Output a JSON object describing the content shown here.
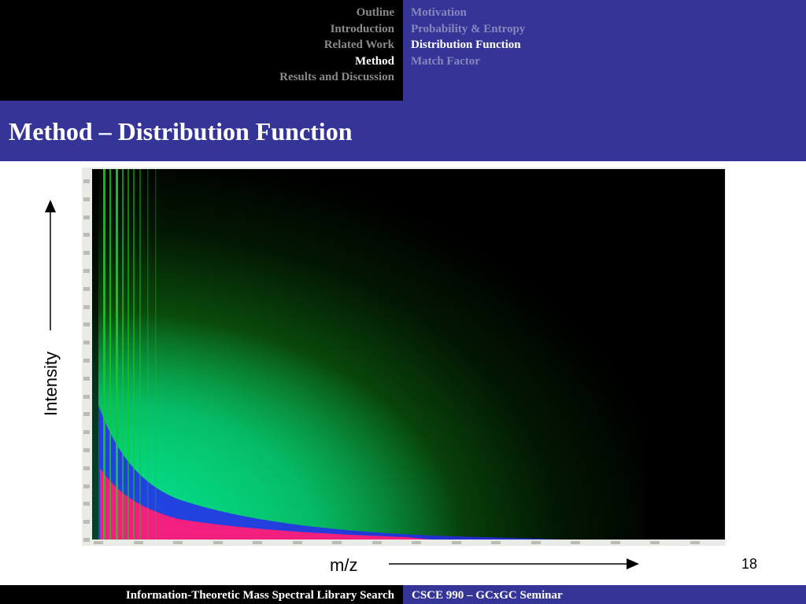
{
  "header": {
    "sections": [
      "Outline",
      "Introduction",
      "Related Work",
      "Method",
      "Results and Discussion"
    ],
    "active_section": "Method",
    "subsections": [
      "Motivation",
      "Probability & Entropy",
      "Distribution Function",
      "Match Factor"
    ],
    "active_subsection": "Distribution Function"
  },
  "slide": {
    "title": "Method – Distribution Function",
    "page_number": "18"
  },
  "figure": {
    "y_axis_label": "Intensity",
    "x_axis_label": "m/z",
    "colors": {
      "background": "#000000",
      "low": "#19c81e",
      "mid": "#00e6a0",
      "high": "#2828f0",
      "peak": "#ff1e78"
    }
  },
  "footer": {
    "left": "Information-Theoretic Mass Spectral Library Search",
    "right": "CSCE 990 – GCxGC Seminar"
  },
  "theme": {
    "primary": "#353598",
    "dark": "#000000"
  }
}
